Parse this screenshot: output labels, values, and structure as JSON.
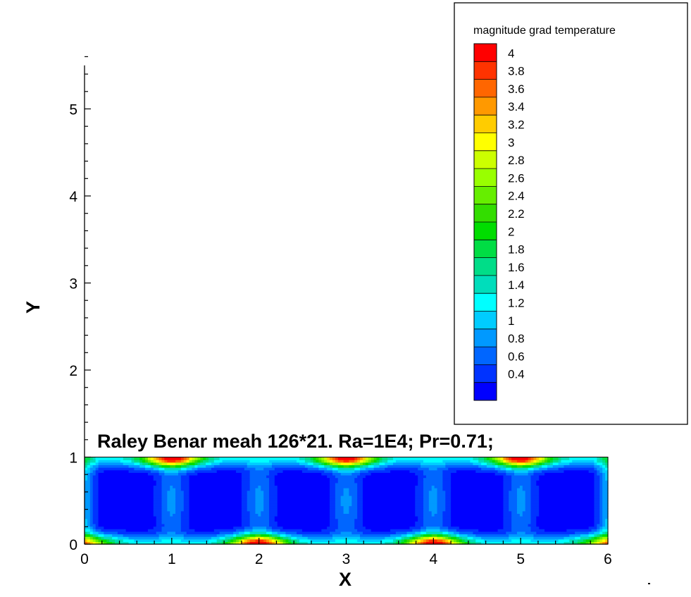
{
  "chart_data": {
    "type": "heatmap",
    "title": "Raley Benar meah 126*21. Ra=1E4; Pr=0.71;",
    "xlabel": "X",
    "ylabel": "Y",
    "xlim": [
      0,
      6
    ],
    "ylim": [
      0,
      5.5
    ],
    "x_ticks": [
      "0",
      "1",
      "2",
      "3",
      "4",
      "5",
      "6"
    ],
    "y_ticks": [
      "0",
      "1",
      "2",
      "3",
      "4",
      "5"
    ],
    "domain": {
      "x": [
        0,
        6
      ],
      "y": [
        0,
        1
      ]
    },
    "field": {
      "name": "magnitude grad temperature",
      "min": 0.4,
      "max": 4.1,
      "convection_cells": 6,
      "hot_spots_top_x": [
        1,
        3,
        5
      ],
      "hot_spots_bottom_x": [
        2,
        4
      ]
    },
    "colorbar": {
      "title": "magnitude grad temperature",
      "levels": [
        "4",
        "3.8",
        "3.6",
        "3.4",
        "3.2",
        "3",
        "2.8",
        "2.6",
        "2.4",
        "2.2",
        "2",
        "1.8",
        "1.6",
        "1.4",
        "1.2",
        "1",
        "0.8",
        "0.6",
        "0.4"
      ],
      "colors": [
        "#ff0000",
        "#ff3300",
        "#ff6600",
        "#ff9900",
        "#ffcc00",
        "#ffff00",
        "#ccff00",
        "#99ff00",
        "#66ee00",
        "#33dd00",
        "#00dd00",
        "#00dd44",
        "#00dd88",
        "#00ddbb",
        "#00ffff",
        "#00ccff",
        "#0099ff",
        "#0066ff",
        "#0033ff",
        "#0000ff"
      ]
    },
    "legend_position": "top-right",
    "grid": false
  }
}
